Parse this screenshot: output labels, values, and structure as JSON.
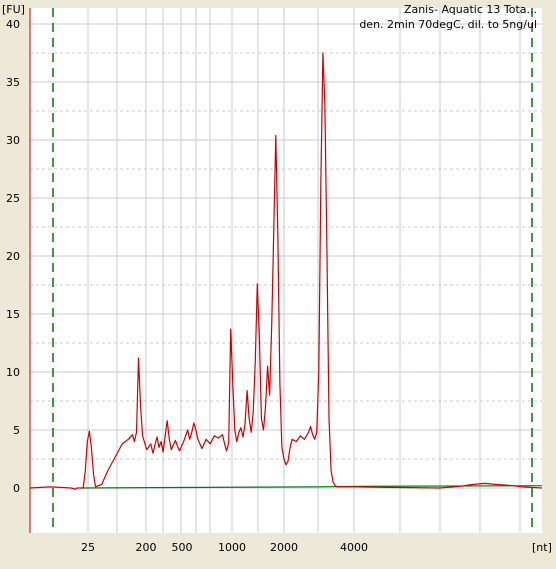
{
  "chart_data": {
    "type": "line",
    "title_line1": "Zanis- Aquatic 13 Tota...",
    "title_line2": "den. 2min 70degC, dil. to 5ng/ul",
    "y_unit_label": "[FU]",
    "x_unit_label": "[nt]",
    "ylim": [
      -4,
      41
    ],
    "y_ticks": [
      0,
      5,
      10,
      15,
      20,
      25,
      30,
      35,
      40
    ],
    "x_tick_labels": [
      "25",
      "200",
      "500",
      "1000",
      "2000",
      "4000"
    ],
    "grid": true,
    "colors": {
      "background": "#ece9d8",
      "plot_bg": "#ffffff",
      "grid": "#c8c8dc",
      "axis": "#cc0000",
      "trace": "#cc0000",
      "baseline": "#008000",
      "marker_line": "#007700"
    },
    "series": [
      {
        "values": [
          [
            0,
            0.0
          ],
          [
            10,
            0.1
          ],
          [
            20,
            0.0
          ],
          [
            22,
            -0.1
          ],
          [
            23,
            0.0
          ],
          [
            26,
            0.0
          ],
          [
            27,
            1.5
          ],
          [
            28,
            4.0
          ],
          [
            29,
            4.9
          ],
          [
            30,
            3.5
          ],
          [
            31,
            1.2
          ],
          [
            32,
            0.1
          ],
          [
            35,
            0.3
          ],
          [
            38,
            1.5
          ],
          [
            42,
            2.8
          ],
          [
            45,
            3.8
          ],
          [
            48,
            4.2
          ],
          [
            50,
            4.6
          ],
          [
            51,
            4.0
          ],
          [
            52,
            4.8
          ],
          [
            53,
            11.2
          ],
          [
            54,
            7.0
          ],
          [
            55,
            4.5
          ],
          [
            57,
            3.3
          ],
          [
            59,
            3.8
          ],
          [
            60,
            3.0
          ],
          [
            62,
            4.4
          ],
          [
            63,
            3.5
          ],
          [
            64,
            4.0
          ],
          [
            65,
            3.1
          ],
          [
            66,
            4.5
          ],
          [
            67,
            5.8
          ],
          [
            68,
            4.2
          ],
          [
            69,
            3.3
          ],
          [
            71,
            4.1
          ],
          [
            72,
            3.6
          ],
          [
            73,
            3.2
          ],
          [
            75,
            4.0
          ],
          [
            77,
            5.0
          ],
          [
            78,
            4.2
          ],
          [
            79,
            4.8
          ],
          [
            80,
            5.6
          ],
          [
            81,
            5.0
          ],
          [
            82,
            4.2
          ],
          [
            84,
            3.4
          ],
          [
            86,
            4.2
          ],
          [
            88,
            3.8
          ],
          [
            90,
            4.5
          ],
          [
            92,
            4.3
          ],
          [
            94,
            4.6
          ],
          [
            95,
            3.8
          ],
          [
            96,
            3.2
          ],
          [
            97,
            3.9
          ],
          [
            98,
            13.7
          ],
          [
            99,
            9.0
          ],
          [
            100,
            5.0
          ],
          [
            101,
            4.0
          ],
          [
            102,
            4.8
          ],
          [
            103,
            5.2
          ],
          [
            104,
            4.4
          ],
          [
            105,
            5.5
          ],
          [
            106,
            8.4
          ],
          [
            107,
            6.0
          ],
          [
            108,
            4.8
          ],
          [
            109,
            6.5
          ],
          [
            110,
            11.0
          ],
          [
            111,
            17.6
          ],
          [
            112,
            13.0
          ],
          [
            113,
            6.0
          ],
          [
            114,
            5.0
          ],
          [
            115,
            7.0
          ],
          [
            116,
            10.5
          ],
          [
            117,
            8.0
          ],
          [
            118,
            14.0
          ],
          [
            119,
            22.0
          ],
          [
            120,
            30.4
          ],
          [
            121,
            22.0
          ],
          [
            122,
            9.0
          ],
          [
            123,
            3.5
          ],
          [
            124,
            2.5
          ],
          [
            125,
            2.0
          ],
          [
            126,
            2.3
          ],
          [
            127,
            3.5
          ],
          [
            128,
            4.2
          ],
          [
            130,
            4.0
          ],
          [
            132,
            4.5
          ],
          [
            134,
            4.2
          ],
          [
            136,
            4.8
          ],
          [
            137,
            5.3
          ],
          [
            138,
            4.6
          ],
          [
            139,
            4.2
          ],
          [
            140,
            4.8
          ],
          [
            141,
            10.0
          ],
          [
            142,
            26.0
          ],
          [
            143,
            37.5
          ],
          [
            144,
            33.0
          ],
          [
            145,
            20.0
          ],
          [
            146,
            6.0
          ],
          [
            147,
            1.5
          ],
          [
            148,
            0.5
          ],
          [
            149,
            0.2
          ],
          [
            150,
            0.1
          ],
          [
            160,
            0.1
          ],
          [
            175,
            0.05
          ],
          [
            200,
            0.0
          ],
          [
            210,
            0.15
          ],
          [
            216,
            0.3
          ],
          [
            222,
            0.4
          ],
          [
            228,
            0.3
          ],
          [
            236,
            0.2
          ],
          [
            240,
            0.1
          ],
          [
            245,
            0.05
          ],
          [
            250,
            0.0
          ]
        ]
      },
      {
        "values": [
          [
            25,
            0.0
          ],
          [
            110,
            0.08
          ],
          [
            140,
            0.1
          ],
          [
            160,
            0.15
          ],
          [
            250,
            0.2
          ]
        ]
      }
    ]
  }
}
